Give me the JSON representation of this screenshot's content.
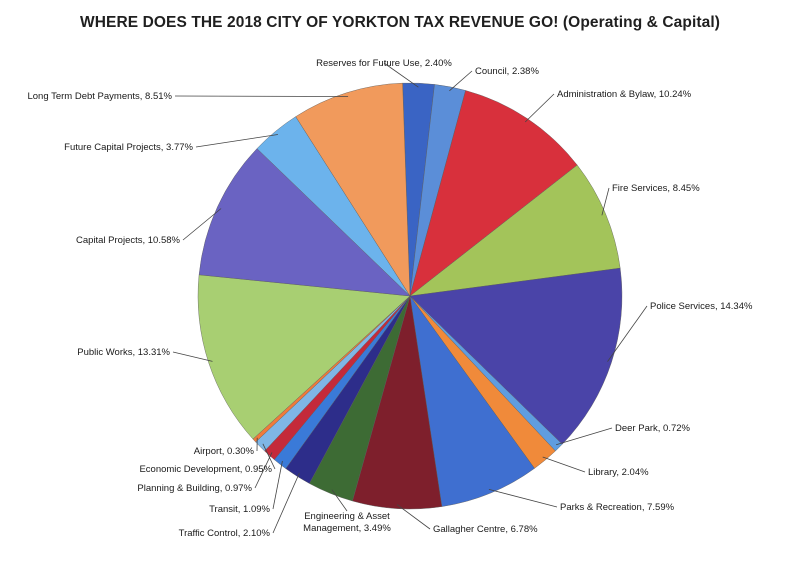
{
  "chart_data": {
    "type": "pie",
    "title": "WHERE DOES THE 2018 CITY OF YORKTON TAX REVENUE GO! (Operating & Capital)",
    "slices": [
      {
        "label": "Reserves for Future Use, 2.40%",
        "value": 2.4,
        "color": "#3a64c4"
      },
      {
        "label": "Council, 2.38%",
        "value": 2.38,
        "color": "#5b8ed8"
      },
      {
        "label": "Administration & Bylaw, 10.24%",
        "value": 10.24,
        "color": "#d8303c"
      },
      {
        "label": "Fire Services, 8.45%",
        "value": 8.45,
        "color": "#a3c45a"
      },
      {
        "label": "Police Services, 14.34%",
        "value": 14.34,
        "color": "#4a44a8"
      },
      {
        "label": "Deer Park, 0.72%",
        "value": 0.72,
        "color": "#5f9de0"
      },
      {
        "label": "Library, 2.04%",
        "value": 2.04,
        "color": "#f08a3a"
      },
      {
        "label": "Parks & Recreation, 7.59%",
        "value": 7.59,
        "color": "#3f6fd0"
      },
      {
        "label": "Gallagher Centre, 6.78%",
        "value": 6.78,
        "color": "#7e1f2c"
      },
      {
        "label": "Engineering & Asset\nManagement, 3.49%",
        "value": 3.49,
        "color": "#3d6b34"
      },
      {
        "label": "Traffic Control, 2.10%",
        "value": 2.1,
        "color": "#2d2d8a"
      },
      {
        "label": "Transit, 1.09%",
        "value": 1.09,
        "color": "#3a7ad8"
      },
      {
        "label": "Planning & Building, 0.97%",
        "value": 0.97,
        "color": "#c42a3a"
      },
      {
        "label": "Economic Development, 0.95%",
        "value": 0.95,
        "color": "#7fb6e6"
      },
      {
        "label": "Airport, 0.30%",
        "value": 0.3,
        "color": "#f07a3a"
      },
      {
        "label": "Public Works, 13.31%",
        "value": 13.31,
        "color": "#a8cf72"
      },
      {
        "label": "Capital Projects, 10.58%",
        "value": 10.58,
        "color": "#6a63c2"
      },
      {
        "label": "Future Capital Projects, 3.77%",
        "value": 3.77,
        "color": "#6cb3ec"
      },
      {
        "label": "Long Term Debt Payments, 8.51%",
        "value": 8.51,
        "color": "#f19a5c"
      }
    ]
  }
}
